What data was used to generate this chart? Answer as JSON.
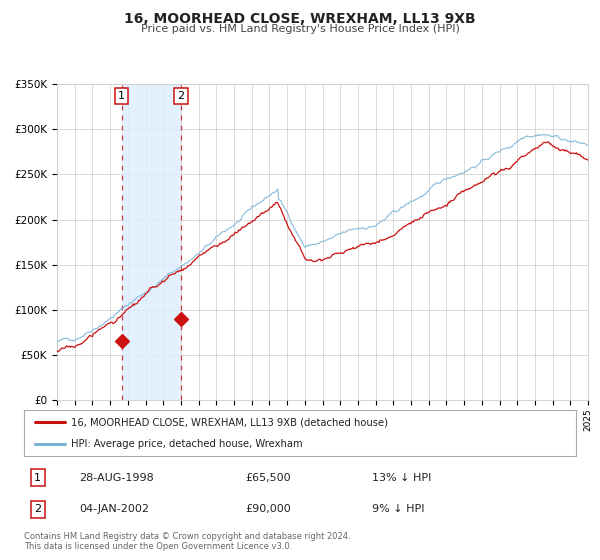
{
  "title": "16, MOORHEAD CLOSE, WREXHAM, LL13 9XB",
  "subtitle": "Price paid vs. HM Land Registry's House Price Index (HPI)",
  "legend_entry1": "16, MOORHEAD CLOSE, WREXHAM, LL13 9XB (detached house)",
  "legend_entry2": "HPI: Average price, detached house, Wrexham",
  "transaction1_date": "28-AUG-1998",
  "transaction1_price": "£65,500",
  "transaction1_hpi": "13% ↓ HPI",
  "transaction2_date": "04-JAN-2002",
  "transaction2_price": "£90,000",
  "transaction2_hpi": "9% ↓ HPI",
  "footnote": "Contains HM Land Registry data © Crown copyright and database right 2024.\nThis data is licensed under the Open Government Licence v3.0.",
  "hpi_color": "#7ab3d8",
  "price_color": "#cc1111",
  "transaction1_x": 1998.66,
  "transaction1_y": 65500,
  "transaction2_x": 2002.01,
  "transaction2_y": 90000,
  "xmin": 1995,
  "xmax": 2025,
  "ymin": 0,
  "ymax": 350000,
  "yticks": [
    0,
    50000,
    100000,
    150000,
    200000,
    250000,
    300000,
    350000
  ],
  "ytick_labels": [
    "£0",
    "£50K",
    "£100K",
    "£150K",
    "£200K",
    "£250K",
    "£300K",
    "£350K"
  ],
  "bg_color": "#ffffff",
  "grid_color": "#cccccc",
  "shaded_color": "#ddeeff"
}
